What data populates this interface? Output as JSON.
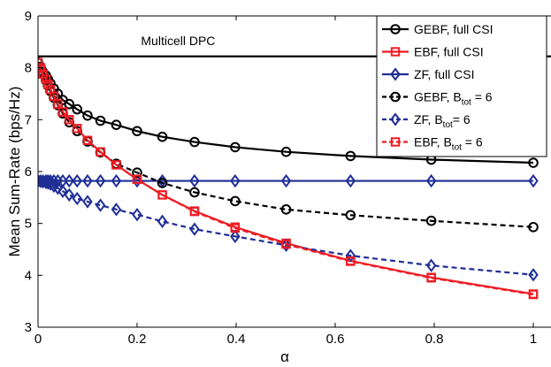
{
  "chart_data": {
    "type": "line",
    "title": "",
    "xlabel": "α",
    "ylabel": "Mean Sum-Rate (bps/Hz)",
    "xlim": [
      0,
      1
    ],
    "ylim": [
      3,
      9
    ],
    "xticks": [
      "0",
      "0.2",
      "0.4",
      "0.6",
      "0.8",
      "1"
    ],
    "yticks": [
      "3",
      "4",
      "5",
      "6",
      "7",
      "8",
      "9"
    ],
    "grid": false,
    "legend_position": "top-right",
    "annotations": [
      {
        "text": "Multicell DPC",
        "x": 0.315,
        "y": 8.3
      }
    ],
    "series": [
      {
        "name": "Multicell DPC",
        "label": "",
        "in_legend": false,
        "color": "#000000",
        "dash": "solid",
        "marker": "none",
        "x": [
          0,
          1.05
        ],
        "y": [
          8.22,
          8.22
        ]
      },
      {
        "name": "GEBF, full CSI",
        "label": "GEBF, full CSI",
        "color": "#000000",
        "dash": "solid",
        "marker": "circle",
        "x": [
          0.0,
          0.005,
          0.01,
          0.016,
          0.02,
          0.025,
          0.032,
          0.04,
          0.05,
          0.063,
          0.079,
          0.1,
          0.126,
          0.158,
          0.2,
          0.251,
          0.316,
          0.398,
          0.501,
          0.631,
          0.794,
          1.0
        ],
        "y": [
          8.1,
          8.02,
          7.92,
          7.85,
          7.78,
          7.7,
          7.6,
          7.5,
          7.38,
          7.3,
          7.2,
          7.08,
          6.98,
          6.9,
          6.78,
          6.67,
          6.57,
          6.47,
          6.38,
          6.3,
          6.23,
          6.17
        ]
      },
      {
        "name": "EBF, full CSI",
        "label": "EBF, full CSI",
        "color": "#ee1c24",
        "dash": "solid",
        "marker": "square",
        "x": [
          0.0,
          0.005,
          0.01,
          0.016,
          0.02,
          0.025,
          0.032,
          0.04,
          0.05,
          0.063,
          0.079,
          0.1,
          0.126,
          0.158,
          0.2,
          0.251,
          0.316,
          0.398,
          0.501,
          0.631,
          0.794,
          1.0
        ],
        "y": [
          8.1,
          8.0,
          7.88,
          7.78,
          7.68,
          7.58,
          7.45,
          7.3,
          7.15,
          7.0,
          6.83,
          6.6,
          6.38,
          6.13,
          5.85,
          5.55,
          5.24,
          4.93,
          4.62,
          4.28,
          3.96,
          3.64
        ]
      },
      {
        "name": "ZF, full CSI",
        "label": "ZF, full CSI",
        "color": "#1f2e96",
        "dash": "solid",
        "marker": "diamond",
        "x": [
          0.0,
          0.005,
          0.01,
          0.016,
          0.02,
          0.025,
          0.032,
          0.04,
          0.05,
          0.063,
          0.079,
          0.1,
          0.126,
          0.158,
          0.2,
          0.251,
          0.316,
          0.398,
          0.501,
          0.631,
          0.794,
          1.0
        ],
        "y": [
          5.82,
          5.82,
          5.82,
          5.82,
          5.82,
          5.82,
          5.82,
          5.82,
          5.82,
          5.82,
          5.82,
          5.82,
          5.82,
          5.82,
          5.82,
          5.82,
          5.82,
          5.82,
          5.82,
          5.82,
          5.82,
          5.82
        ]
      },
      {
        "name": "GEBF, B_tot = 6",
        "label": "GEBF, B",
        "label_sub": "tot",
        "label_suffix": " = 6",
        "color": "#000000",
        "dash": "dashed",
        "marker": "circle",
        "x": [
          0.0,
          0.005,
          0.01,
          0.016,
          0.02,
          0.025,
          0.032,
          0.04,
          0.05,
          0.063,
          0.079,
          0.1,
          0.126,
          0.158,
          0.2,
          0.251,
          0.316,
          0.398,
          0.501,
          0.631,
          0.794,
          1.0
        ],
        "y": [
          8.1,
          8.0,
          7.88,
          7.76,
          7.66,
          7.55,
          7.42,
          7.28,
          7.12,
          6.95,
          6.78,
          6.58,
          6.37,
          6.15,
          5.98,
          5.78,
          5.6,
          5.43,
          5.27,
          5.16,
          5.05,
          4.93
        ]
      },
      {
        "name": "ZF, B_tot = 6",
        "label": "ZF, B",
        "label_sub": "tot",
        "label_suffix": "= 6",
        "color": "#1f2e96",
        "dash": "dashed",
        "marker": "diamond",
        "x": [
          0.0,
          0.005,
          0.01,
          0.016,
          0.02,
          0.025,
          0.032,
          0.04,
          0.05,
          0.063,
          0.079,
          0.1,
          0.126,
          0.158,
          0.2,
          0.251,
          0.316,
          0.398,
          0.501,
          0.631,
          0.794,
          1.0
        ],
        "y": [
          5.82,
          5.81,
          5.8,
          5.79,
          5.78,
          5.76,
          5.72,
          5.68,
          5.62,
          5.55,
          5.48,
          5.42,
          5.35,
          5.27,
          5.17,
          5.04,
          4.89,
          4.75,
          4.58,
          4.38,
          4.19,
          4.01
        ]
      },
      {
        "name": "EBF, B_tot = 6",
        "label": "EBF, B",
        "label_sub": "tot",
        "label_suffix": " = 6",
        "color": "#ee1c24",
        "dash": "dashed",
        "marker": "square",
        "x": [
          0.0,
          0.005,
          0.01,
          0.016,
          0.02,
          0.025,
          0.032,
          0.04,
          0.05,
          0.063,
          0.079,
          0.1,
          0.126,
          0.158,
          0.2,
          0.251,
          0.316,
          0.398,
          0.501,
          0.631,
          0.794,
          1.0
        ],
        "y": [
          8.1,
          8.0,
          7.88,
          7.78,
          7.68,
          7.58,
          7.45,
          7.3,
          7.15,
          7.0,
          6.83,
          6.6,
          6.38,
          6.13,
          5.85,
          5.55,
          5.23,
          4.91,
          4.6,
          4.27,
          3.95,
          3.63
        ]
      }
    ]
  }
}
